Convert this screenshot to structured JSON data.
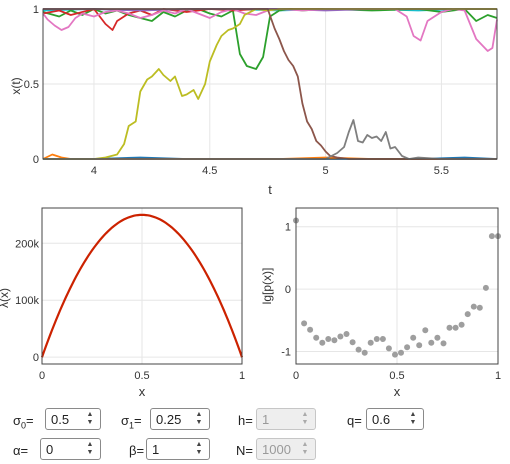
{
  "colors": {
    "blue": "#1f77b4",
    "orange": "#ff7f0e",
    "green": "#2ca02c",
    "red": "#d62728",
    "purple": "#9467bd",
    "brown": "#8c564b",
    "pink": "#e377c2",
    "gray": "#7f7f7f",
    "olive": "#bcbd22",
    "cyan": "#17becf",
    "lambda_curve": "#cc2200",
    "scatter": "#9e9e9e"
  },
  "chart_data": [
    {
      "type": "line",
      "xlabel": "t",
      "ylabel": "x(t)",
      "xlim": [
        3.78,
        5.74
      ],
      "ylim": [
        0,
        1
      ],
      "xticks": [
        "4",
        "4.5",
        "5",
        "5.5"
      ],
      "yticks": [
        "0",
        "0.5",
        "1"
      ],
      "grid": true,
      "series": [
        {
          "color": "#17becf",
          "x": [
            3.78,
            4.0,
            4.2,
            4.4,
            4.6,
            4.8,
            5.0,
            5.2,
            5.4,
            5.6,
            5.74
          ],
          "y": [
            0.99,
            1.0,
            0.99,
            1.0,
            1.0,
            0.99,
            1.0,
            1.0,
            0.99,
            1.0,
            1.0
          ]
        },
        {
          "color": "#1f77b4",
          "x": [
            3.78,
            4.0,
            4.2,
            4.4,
            4.6,
            4.8,
            5.0,
            5.2,
            5.4,
            5.6,
            5.74
          ],
          "y": [
            0.0,
            0.0,
            0.01,
            0.0,
            0.0,
            0.0,
            0.0,
            0.0,
            0.0,
            0.01,
            0.0
          ]
        },
        {
          "color": "#ff7f0e",
          "x": [
            3.78,
            3.82,
            3.86,
            3.9,
            4.0,
            4.2,
            4.5,
            4.8,
            5.0,
            5.2,
            5.5,
            5.74
          ],
          "y": [
            0.0,
            0.03,
            0.01,
            0.0,
            0.0,
            0.0,
            0.0,
            0.0,
            0.01,
            0.0,
            0.0,
            0.0
          ]
        },
        {
          "color": "#2ca02c",
          "x": [
            3.78,
            3.85,
            3.9,
            3.95,
            4.0,
            4.05,
            4.1,
            4.15,
            4.2,
            4.25,
            4.3,
            4.35,
            4.4,
            4.45,
            4.5,
            4.55,
            4.6,
            4.63,
            4.66,
            4.7,
            4.73,
            4.76,
            4.8,
            4.85,
            4.9,
            5.0,
            5.2,
            5.4,
            5.5,
            5.6,
            5.65,
            5.7,
            5.74
          ],
          "y": [
            0.98,
            0.95,
            0.99,
            0.96,
            1.0,
            0.97,
            0.99,
            0.96,
            0.94,
            0.92,
            0.98,
            0.95,
            0.99,
            1.0,
            0.97,
            0.95,
            0.99,
            0.7,
            0.62,
            0.6,
            0.68,
            0.95,
            0.99,
            1.0,
            0.99,
            1.0,
            0.99,
            1.0,
            0.98,
            1.0,
            0.92,
            0.96,
            0.94
          ]
        },
        {
          "color": "#d62728",
          "x": [
            3.78,
            3.85,
            3.9,
            3.95,
            4.0,
            4.05,
            4.08,
            4.1,
            4.15,
            4.2,
            4.25,
            4.3,
            4.4,
            4.5,
            4.6,
            4.7,
            4.8,
            5.0,
            5.2,
            5.5,
            5.74
          ],
          "y": [
            0.97,
            0.99,
            0.96,
            0.98,
            1.0,
            0.9,
            0.86,
            0.92,
            0.97,
            0.99,
            0.96,
            1.0,
            0.98,
            1.0,
            0.99,
            1.0,
            1.0,
            1.0,
            1.0,
            1.0,
            1.0
          ]
        },
        {
          "color": "#9467bd",
          "x": [
            3.78,
            4.0,
            4.2,
            4.4,
            4.6,
            4.8,
            5.0,
            5.2,
            5.4,
            5.74
          ],
          "y": [
            1.0,
            1.0,
            0.99,
            1.0,
            1.0,
            1.0,
            0.99,
            1.0,
            1.0,
            1.0
          ]
        },
        {
          "color": "#e377c2",
          "x": [
            3.78,
            3.8,
            3.83,
            3.86,
            3.89,
            3.92,
            3.95,
            4.0,
            4.05,
            4.1,
            4.15,
            4.2,
            4.25,
            4.3,
            4.35,
            4.4,
            4.45,
            4.5,
            4.55,
            4.6,
            4.65,
            4.7,
            4.75,
            4.8,
            4.9,
            5.0,
            5.1,
            5.2,
            5.3,
            5.35,
            5.38,
            5.41,
            5.44,
            5.5,
            5.55,
            5.6,
            5.65,
            5.7,
            5.72,
            5.74
          ],
          "y": [
            0.97,
            0.93,
            0.89,
            0.86,
            0.88,
            0.94,
            0.97,
            0.95,
            0.98,
            0.99,
            0.97,
            0.94,
            0.96,
            0.99,
            0.97,
            1.0,
            0.97,
            0.94,
            0.98,
            1.0,
            0.97,
            0.96,
            0.99,
            1.0,
            0.99,
            1.0,
            1.0,
            1.0,
            1.0,
            0.95,
            0.82,
            0.79,
            0.92,
            0.98,
            1.0,
            0.99,
            0.8,
            0.72,
            0.74,
            0.93
          ]
        },
        {
          "color": "#bcbd22",
          "x": [
            3.78,
            4.0,
            4.05,
            4.1,
            4.13,
            4.15,
            4.18,
            4.2,
            4.23,
            4.25,
            4.28,
            4.3,
            4.33,
            4.35,
            4.38,
            4.4,
            4.43,
            4.45,
            4.48,
            4.5,
            4.53,
            4.55,
            4.58,
            4.6,
            4.63,
            4.65,
            4.7,
            4.75,
            4.8,
            5.0,
            5.74
          ],
          "y": [
            0.0,
            0.0,
            0.01,
            0.03,
            0.1,
            0.22,
            0.25,
            0.45,
            0.53,
            0.55,
            0.6,
            0.56,
            0.52,
            0.55,
            0.42,
            0.43,
            0.46,
            0.4,
            0.5,
            0.65,
            0.76,
            0.82,
            0.86,
            0.87,
            0.9,
            0.96,
            1.0,
            0.99,
            1.0,
            1.0,
            1.0
          ]
        },
        {
          "color": "#8c564b",
          "x": [
            3.78,
            4.0,
            4.2,
            4.4,
            4.6,
            4.75,
            4.78,
            4.8,
            4.82,
            4.84,
            4.86,
            4.88,
            4.9,
            4.92,
            4.94,
            4.96,
            4.98,
            5.0,
            5.02,
            5.05,
            5.1,
            5.5,
            5.74
          ],
          "y": [
            1.0,
            1.0,
            1.0,
            1.0,
            1.0,
            1.0,
            0.87,
            0.8,
            0.72,
            0.66,
            0.62,
            0.55,
            0.37,
            0.25,
            0.2,
            0.12,
            0.09,
            0.05,
            0.02,
            0.01,
            0.0,
            0.0,
            0.0
          ]
        },
        {
          "color": "#7f7f7f",
          "x": [
            3.78,
            4.5,
            5.0,
            5.05,
            5.08,
            5.1,
            5.12,
            5.14,
            5.16,
            5.18,
            5.2,
            5.22,
            5.24,
            5.26,
            5.28,
            5.3,
            5.33,
            5.36,
            5.4,
            5.5,
            5.74
          ],
          "y": [
            0.0,
            0.0,
            0.0,
            0.04,
            0.08,
            0.18,
            0.26,
            0.12,
            0.11,
            0.16,
            0.14,
            0.15,
            0.12,
            0.18,
            0.07,
            0.08,
            0.02,
            0.0,
            0.01,
            0.0,
            0.0
          ]
        }
      ]
    },
    {
      "type": "line",
      "xlabel": "x",
      "ylabel": "λ(x)",
      "xlim": [
        0,
        1
      ],
      "ylim": [
        -12000,
        262000
      ],
      "xticks": [
        "0",
        "0.5",
        "1"
      ],
      "yticks": [
        "0",
        "100k",
        "200k"
      ],
      "grid": true,
      "function": "1000000*x*(1-x)",
      "peak": {
        "x": 0.5,
        "y": 250000
      }
    },
    {
      "type": "scatter",
      "xlabel": "x",
      "ylabel": "lg[p(x)]",
      "xlim": [
        0,
        1
      ],
      "ylim": [
        -1.2,
        1.3
      ],
      "xticks": [
        "0",
        "0.5",
        "1"
      ],
      "yticks": [
        "1",
        "0",
        "-1"
      ],
      "grid": true,
      "x": [
        0.0,
        0.04,
        0.07,
        0.1,
        0.13,
        0.16,
        0.19,
        0.22,
        0.25,
        0.28,
        0.31,
        0.34,
        0.37,
        0.4,
        0.43,
        0.46,
        0.49,
        0.52,
        0.55,
        0.58,
        0.61,
        0.64,
        0.67,
        0.7,
        0.73,
        0.76,
        0.79,
        0.82,
        0.85,
        0.88,
        0.91,
        0.94,
        0.97,
        1.0
      ],
      "y": [
        1.1,
        -0.55,
        -0.65,
        -0.78,
        -0.86,
        -0.8,
        -0.82,
        -0.76,
        -0.72,
        -0.85,
        -0.97,
        -1.02,
        -0.86,
        -0.8,
        -0.8,
        -0.95,
        -1.05,
        -1.02,
        -0.93,
        -0.78,
        -0.9,
        -0.66,
        -0.86,
        -0.78,
        -0.87,
        -0.62,
        -0.62,
        -0.57,
        -0.4,
        -0.28,
        -0.3,
        0.02,
        0.85,
        0.85
      ]
    }
  ],
  "controls": [
    {
      "label_base": "σ",
      "label_sub": "0",
      "value": "0.5",
      "enabled": true
    },
    {
      "label_base": "σ",
      "label_sub": "1",
      "value": "0.25",
      "enabled": true
    },
    {
      "label_base": "h",
      "label_sub": "",
      "value": "1",
      "enabled": false
    },
    {
      "label_base": "q",
      "label_sub": "",
      "value": "0.6",
      "enabled": true
    },
    {
      "label_base": "α",
      "label_sub": "",
      "value": "0",
      "enabled": true
    },
    {
      "label_base": "β",
      "label_sub": "",
      "value": "1",
      "enabled": true
    },
    {
      "label_base": "N",
      "label_sub": "",
      "value": "1000",
      "enabled": false
    }
  ],
  "label_suffix": "="
}
